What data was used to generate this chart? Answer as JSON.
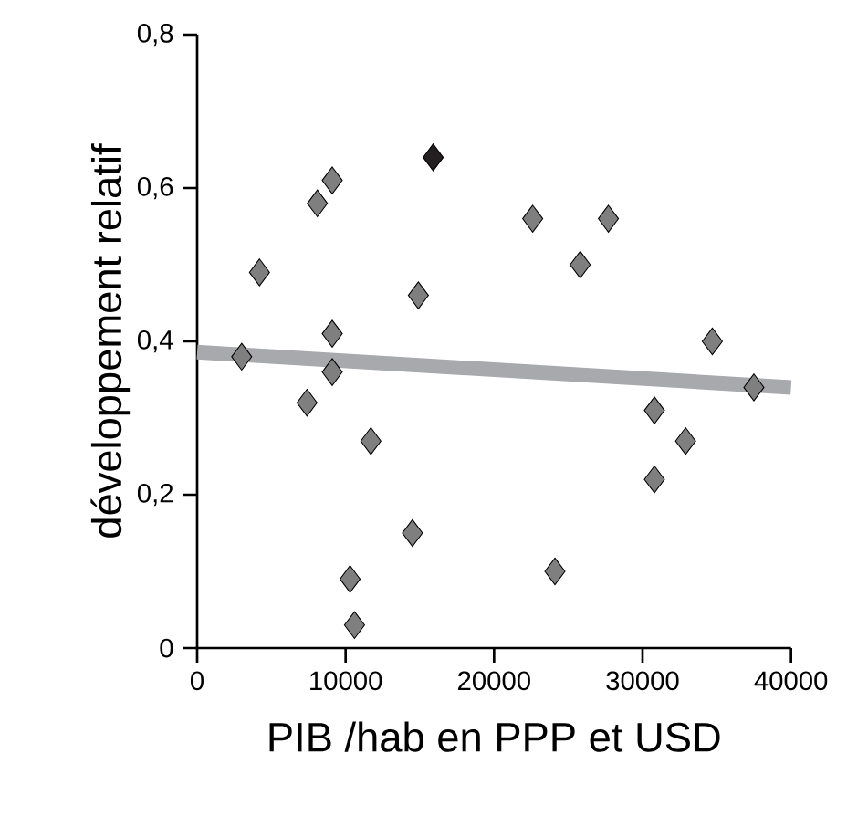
{
  "chart_data": {
    "type": "scatter",
    "xlabel": "PIB /hab en PPP et USD",
    "ylabel": "développement relatif",
    "grid": false,
    "xlim": [
      0,
      40000
    ],
    "ylim": [
      0,
      0.8
    ],
    "xticks": [
      0,
      10000,
      20000,
      30000,
      40000
    ],
    "yticks": [
      0,
      {
        "value": 0.2,
        "label": "0,2"
      },
      {
        "value": 0.4,
        "label": "0,4"
      },
      {
        "value": 0.6,
        "label": "0,6"
      },
      {
        "value": 0.8,
        "label": "0,8"
      }
    ],
    "series": [
      {
        "marker": "diamond",
        "x": [
          3000,
          4200,
          7400,
          8100,
          9100,
          9100,
          9100,
          11700,
          10300,
          10600,
          14500,
          14900,
          15900,
          22600,
          24100,
          25800,
          27700,
          30800,
          30800,
          32900,
          34700,
          37500
        ],
        "values": [
          0.38,
          0.49,
          0.32,
          0.58,
          0.61,
          0.41,
          0.36,
          0.27,
          0.09,
          0.03,
          0.15,
          0.46,
          0.64,
          0.56,
          0.1,
          0.5,
          0.56,
          0.31,
          0.22,
          0.27,
          0.4,
          0.34
        ],
        "colors": [
          "#7f7f7f",
          "#7f7f7f",
          "#7f7f7f",
          "#7f7f7f",
          "#7f7f7f",
          "#7f7f7f",
          "#7f7f7f",
          "#7f7f7f",
          "#7f7f7f",
          "#7f7f7f",
          "#7f7f7f",
          "#7f7f7f",
          "#231f20",
          "#7f7f7f",
          "#7f7f7f",
          "#7f7f7f",
          "#7f7f7f",
          "#7f7f7f",
          "#7f7f7f",
          "#7f7f7f",
          "#7f7f7f",
          "#7f7f7f"
        ]
      },
      {
        "type": "line",
        "color": "#a7a9ac",
        "x": [
          0,
          40000
        ],
        "values": [
          0.386,
          0.34
        ]
      }
    ]
  }
}
